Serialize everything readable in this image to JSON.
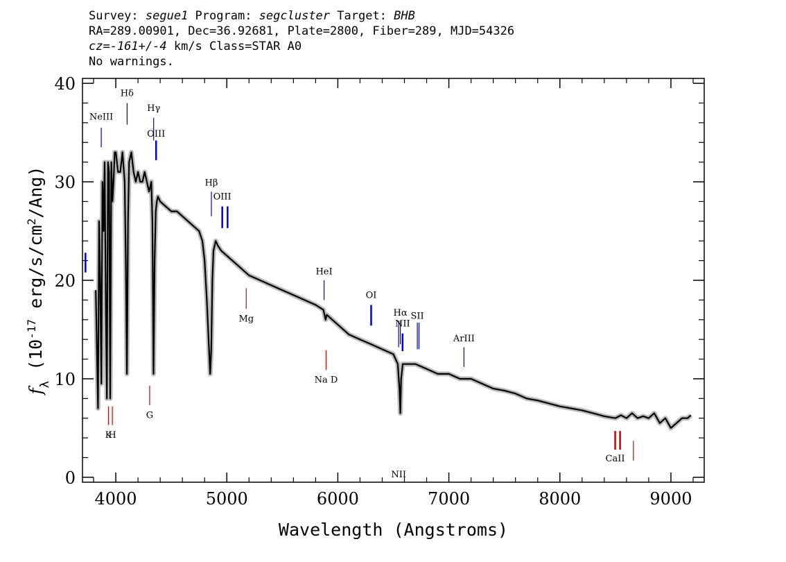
{
  "header": {
    "survey_prefix": "Survey: ",
    "survey": "segue1",
    "program_prefix": " Program: ",
    "program": "segcluster",
    "target_prefix": " Target: ",
    "target": "BHB",
    "line2": "RA=289.00901, Dec=36.92681, Plate=2800, Fiber=289, MJD=54326",
    "cz": "cz=-161+/-4",
    "cz_rest": " km/s Class=STAR A0",
    "line4": "No warnings."
  },
  "chart_data": {
    "type": "line",
    "xlabel": "Wavelength (Angstroms)",
    "ylabel": "f_λ (10^-17 erg/s/cm^2/Ang)",
    "xlim": [
      3700,
      9300
    ],
    "ylim": [
      -0.5,
      40.5
    ],
    "xticks": [
      4000,
      5000,
      6000,
      7000,
      8000,
      9000
    ],
    "yticks": [
      0,
      10,
      20,
      30,
      40
    ],
    "colors": {
      "spectrum": "#000000",
      "error": "#b4b4b4",
      "emission": "#0000cc",
      "absorption": "#cc0000"
    },
    "series": [
      {
        "x": [
          3820,
          3830,
          3840,
          3850,
          3860,
          3870,
          3880,
          3890,
          3900,
          3910,
          3920,
          3930,
          3940,
          3950,
          3960,
          3970,
          3980,
          3990,
          4000,
          4020,
          4040,
          4060,
          4080,
          4090,
          4100,
          4110,
          4120,
          4140,
          4160,
          4180,
          4200,
          4220,
          4240,
          4260,
          4280,
          4300,
          4320,
          4330,
          4340,
          4350,
          4360,
          4370,
          4380,
          4400,
          4450,
          4500,
          4550,
          4600,
          4650,
          4700,
          4750,
          4780,
          4800,
          4820,
          4840,
          4850,
          4860,
          4870,
          4880,
          4900,
          4920,
          4950,
          5000,
          5050,
          5100,
          5200,
          5300,
          5400,
          5500,
          5600,
          5700,
          5800,
          5870,
          5890,
          5900,
          6000,
          6100,
          6200,
          6300,
          6400,
          6500,
          6520,
          6540,
          6555,
          6563,
          6570,
          6585,
          6600,
          6650,
          6700,
          6800,
          6900,
          7000,
          7100,
          7200,
          7300,
          7400,
          7500,
          7600,
          7700,
          7800,
          7900,
          8000,
          8100,
          8200,
          8300,
          8400,
          8500,
          8550,
          8600,
          8650,
          8700,
          8750,
          8800,
          8850,
          8900,
          8950,
          9000,
          9050,
          9100,
          9150,
          9180
        ],
        "y": [
          19,
          13,
          7,
          26,
          20,
          9.5,
          30,
          25,
          32,
          18,
          8,
          32,
          31,
          8,
          32,
          28,
          30,
          33,
          33,
          31,
          31,
          33,
          30,
          22,
          10.5,
          26,
          32,
          33,
          31,
          30,
          31,
          30,
          30,
          31,
          30,
          29,
          30,
          26,
          10.5,
          22,
          27,
          28,
          28.5,
          28,
          27.5,
          27,
          27,
          26.5,
          26,
          25.5,
          25,
          24,
          22,
          18,
          13,
          10.5,
          13,
          20,
          23,
          24,
          23.5,
          23,
          22.5,
          22,
          21.5,
          20.5,
          20,
          19.5,
          19,
          18.5,
          18,
          17.5,
          17,
          16,
          16.5,
          15.5,
          14.5,
          14,
          13.5,
          13,
          12.5,
          12,
          11.5,
          9,
          6.5,
          10,
          11.5,
          11.5,
          11.5,
          11.5,
          11,
          10.5,
          10.5,
          10,
          10,
          9.5,
          9,
          8.8,
          8.5,
          8,
          7.8,
          7.5,
          7.2,
          7,
          6.8,
          6.5,
          6.2,
          6,
          6.3,
          6,
          6.5,
          6,
          6.2,
          6,
          6.5,
          5.5,
          6,
          5,
          5.5,
          6,
          6,
          6.3
        ]
      }
    ],
    "line_markers": [
      {
        "label": "NeIII",
        "x": 3869,
        "type": "emission",
        "y0": 33.5,
        "y1": 35.5,
        "label_y": 36.3,
        "weight": "thin"
      },
      {
        "label": "Hδ",
        "x": 4102,
        "type": "emission",
        "y0": 35.8,
        "y1": 38.0,
        "label_y": 38.7,
        "weight": "thin"
      },
      {
        "label": "Hγ",
        "x": 4341,
        "type": "emission",
        "y0": 34.2,
        "y1": 36.5,
        "label_y": 37.2,
        "weight": "thin"
      },
      {
        "label": "OIII",
        "x": 4363,
        "type": "emission",
        "y0": 32.2,
        "y1": 34.2,
        "label_y": 34.6,
        "weight": "thick"
      },
      {
        "label": "Hβ",
        "x": 4861,
        "type": "emission",
        "y0": 26.5,
        "y1": 29.0,
        "label_y": 29.6,
        "weight": "thin"
      },
      {
        "label": "OIII",
        "x": 4959,
        "type": "emission",
        "y0": 25.3,
        "y1": 27.5,
        "label_y": 28.2,
        "weight": "thick"
      },
      {
        "label": "",
        "x": 5007,
        "type": "emission",
        "y0": 25.3,
        "y1": 27.5,
        "label_y": 0,
        "weight": "thick"
      },
      {
        "label": "HeI",
        "x": 5876,
        "type": "emission",
        "y0": 18.0,
        "y1": 20.0,
        "label_y": 20.6,
        "weight": "thin"
      },
      {
        "label": "OI",
        "x": 6300,
        "type": "emission",
        "y0": 15.4,
        "y1": 17.5,
        "label_y": 18.2,
        "weight": "thick"
      },
      {
        "label": "NII",
        "x": 6548,
        "type": "emission",
        "y0": 13.2,
        "y1": 15.9,
        "label_y": 0,
        "weight": "thin"
      },
      {
        "label": "Hα",
        "x": 6563,
        "type": "emission",
        "y0": 13.5,
        "y1": 15.9,
        "label_y": 16.4,
        "weight": "thin"
      },
      {
        "label": "NII",
        "x": 6583,
        "type": "emission",
        "y0": 12.8,
        "y1": 14.6,
        "label_y": 15.3,
        "weight": "thick"
      },
      {
        "label": "SII",
        "x": 6716,
        "type": "emission",
        "y0": 13.0,
        "y1": 15.7,
        "label_y": 16.1,
        "weight": "thin"
      },
      {
        "label": "",
        "x": 6731,
        "type": "emission",
        "y0": 13.0,
        "y1": 15.7,
        "label_y": 0,
        "weight": "thin"
      },
      {
        "label": "ArIII",
        "x": 7136,
        "type": "emission",
        "y0": 11.2,
        "y1": 13.2,
        "label_y": 13.8,
        "weight": "thin"
      },
      {
        "label": "",
        "x": 3727,
        "type": "emission",
        "y0": 20.8,
        "y1": 22.8,
        "label_y": 0,
        "weight": "thick"
      },
      {
        "label": "K",
        "x": 3934,
        "type": "absorption",
        "y0": 5.3,
        "y1": 7.2,
        "label_y": 4.0,
        "weight": "thin"
      },
      {
        "label": "H",
        "x": 3969,
        "type": "absorption",
        "y0": 5.3,
        "y1": 7.2,
        "label_y": 4.0,
        "weight": "thin"
      },
      {
        "label": "G",
        "x": 4305,
        "type": "absorption",
        "y0": 7.3,
        "y1": 9.3,
        "label_y": 6.0,
        "weight": "thin"
      },
      {
        "label": "Mg",
        "x": 5175,
        "type": "absorption",
        "y0": 17.1,
        "y1": 19.2,
        "label_y": 15.8,
        "weight": "thin"
      },
      {
        "label": "Na D",
        "x": 5894,
        "type": "absorption",
        "y0": 10.9,
        "y1": 12.9,
        "label_y": 9.6,
        "weight": "thin"
      },
      {
        "label": "CaII",
        "x": 8498,
        "type": "absorption",
        "y0": 2.8,
        "y1": 4.7,
        "label_y": 1.6,
        "weight": "thick"
      },
      {
        "label": "",
        "x": 8542,
        "type": "absorption",
        "y0": 2.8,
        "y1": 4.7,
        "label_y": 0,
        "weight": "thick"
      },
      {
        "label": "",
        "x": 8662,
        "type": "absorption",
        "y0": 1.7,
        "y1": 3.7,
        "label_y": 0,
        "weight": "thin"
      }
    ]
  }
}
